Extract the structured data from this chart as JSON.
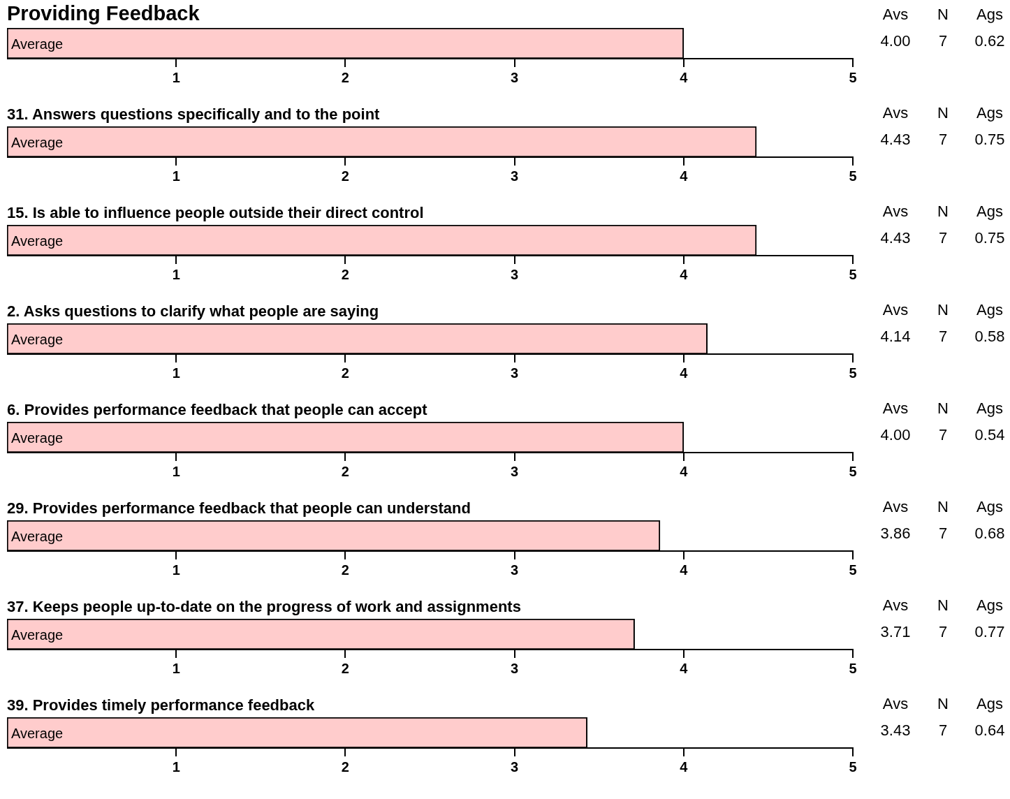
{
  "chart_data": [
    {
      "type": "bar",
      "orientation": "horizontal",
      "title": "Providing Feedback",
      "categories": [
        "Average"
      ],
      "values": [
        4.0
      ],
      "color": "#ffcccc",
      "xlim": [
        0,
        5
      ],
      "xticks": [
        1,
        2,
        3,
        4,
        5
      ],
      "annotations": [
        "Avs",
        "N",
        "Ags",
        "4.00",
        "7",
        "0.62"
      ]
    },
    {
      "type": "bar",
      "orientation": "horizontal",
      "title": "31. Answers questions specifically and to the point",
      "categories": [
        "Average"
      ],
      "values": [
        4.43
      ],
      "color": "#ffcccc",
      "xlim": [
        0,
        5
      ],
      "xticks": [
        1,
        2,
        3,
        4,
        5
      ],
      "annotations": [
        "Avs",
        "N",
        "Ags",
        "4.43",
        "7",
        "0.75"
      ]
    },
    {
      "type": "bar",
      "orientation": "horizontal",
      "title": "15. Is able to influence people outside their direct control",
      "categories": [
        "Average"
      ],
      "values": [
        4.43
      ],
      "color": "#ffcccc",
      "xlim": [
        0,
        5
      ],
      "xticks": [
        1,
        2,
        3,
        4,
        5
      ],
      "annotations": [
        "Avs",
        "N",
        "Ags",
        "4.43",
        "7",
        "0.75"
      ]
    },
    {
      "type": "bar",
      "orientation": "horizontal",
      "title": "2. Asks questions to clarify what people are saying",
      "categories": [
        "Average"
      ],
      "values": [
        4.14
      ],
      "color": "#ffcccc",
      "xlim": [
        0,
        5
      ],
      "xticks": [
        1,
        2,
        3,
        4,
        5
      ],
      "annotations": [
        "Avs",
        "N",
        "Ags",
        "4.14",
        "7",
        "0.58"
      ]
    },
    {
      "type": "bar",
      "orientation": "horizontal",
      "title": "6. Provides performance feedback that people can accept",
      "categories": [
        "Average"
      ],
      "values": [
        4.0
      ],
      "color": "#ffcccc",
      "xlim": [
        0,
        5
      ],
      "xticks": [
        1,
        2,
        3,
        4,
        5
      ],
      "annotations": [
        "Avs",
        "N",
        "Ags",
        "4.00",
        "7",
        "0.54"
      ]
    },
    {
      "type": "bar",
      "orientation": "horizontal",
      "title": "29. Provides performance feedback that people can understand",
      "categories": [
        "Average"
      ],
      "values": [
        3.86
      ],
      "color": "#ffcccc",
      "xlim": [
        0,
        5
      ],
      "xticks": [
        1,
        2,
        3,
        4,
        5
      ],
      "annotations": [
        "Avs",
        "N",
        "Ags",
        "3.86",
        "7",
        "0.68"
      ]
    },
    {
      "type": "bar",
      "orientation": "horizontal",
      "title": "37. Keeps people up-to-date on the progress of work and assignments",
      "categories": [
        "Average"
      ],
      "values": [
        3.71
      ],
      "color": "#ffcccc",
      "xlim": [
        0,
        5
      ],
      "xticks": [
        1,
        2,
        3,
        4,
        5
      ],
      "annotations": [
        "Avs",
        "N",
        "Ags",
        "3.71",
        "7",
        "0.77"
      ]
    },
    {
      "type": "bar",
      "orientation": "horizontal",
      "title": "39. Provides timely performance feedback",
      "categories": [
        "Average"
      ],
      "values": [
        3.43
      ],
      "color": "#ffcccc",
      "xlim": [
        0,
        5
      ],
      "xticks": [
        1,
        2,
        3,
        4,
        5
      ],
      "annotations": [
        "Avs",
        "N",
        "Ags",
        "3.43",
        "7",
        "0.64"
      ]
    }
  ]
}
